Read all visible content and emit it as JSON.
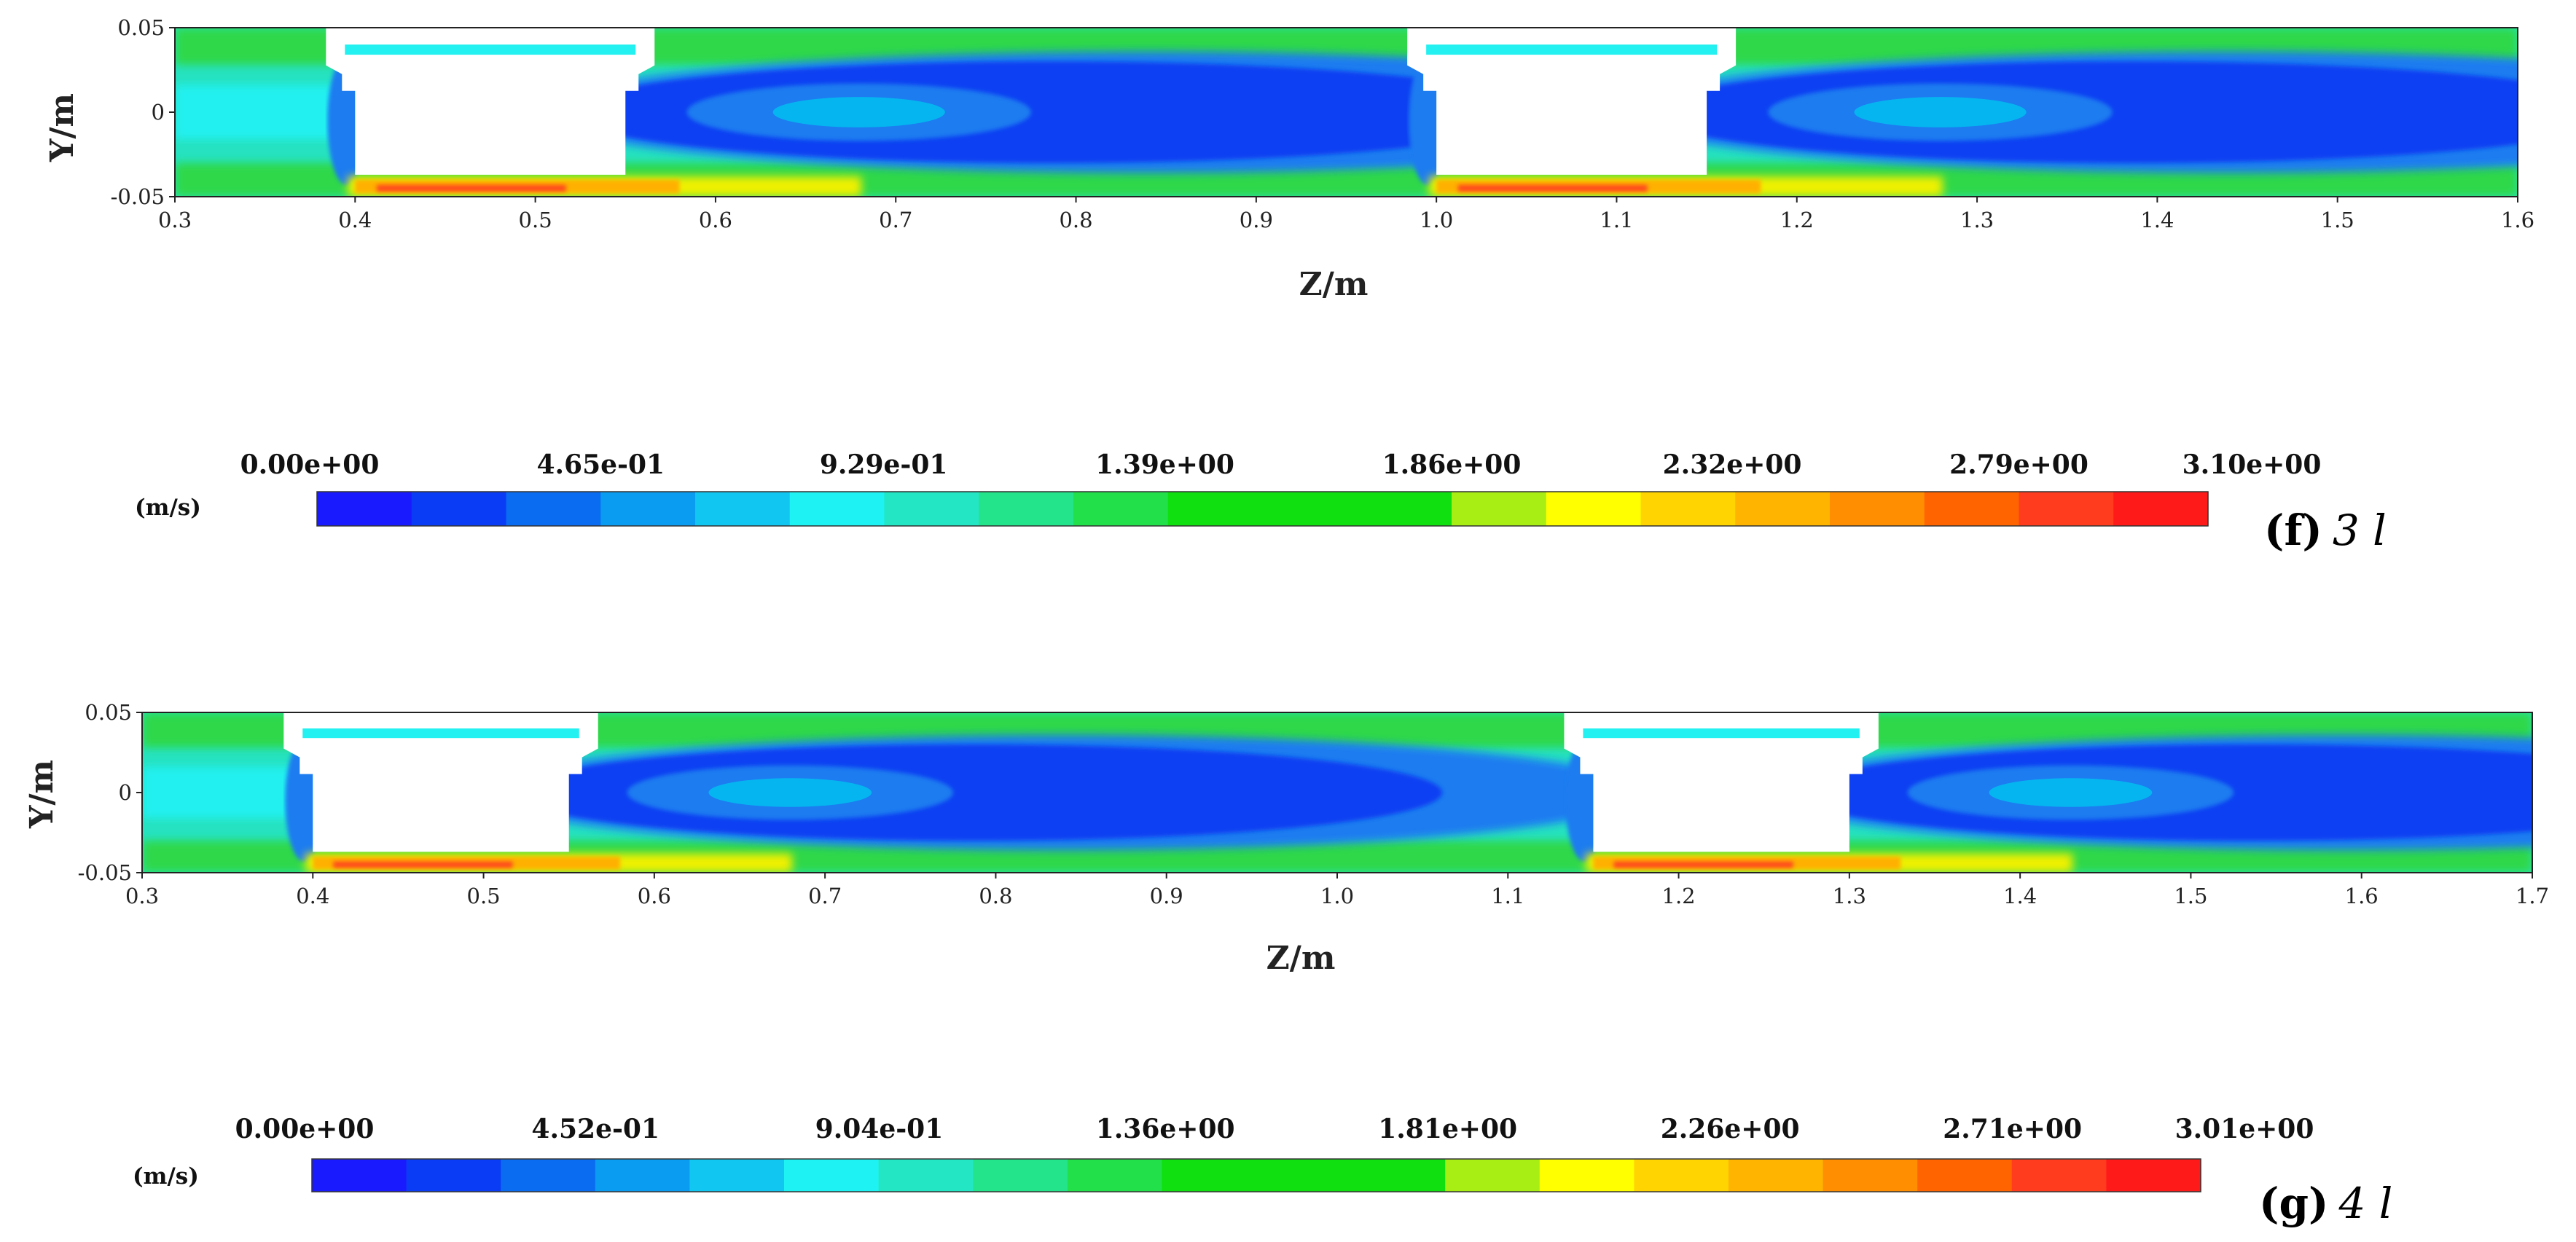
{
  "chart_data": [
    {
      "type": "heatmap",
      "panel_label": "3 l",
      "panel_letter": "(f)",
      "xlabel": "Z/m",
      "ylabel": "Y/m",
      "xlim": [
        0.3,
        1.6
      ],
      "ylim": [
        -0.05,
        0.05
      ],
      "x_ticks": [
        0.3,
        0.4,
        0.5,
        0.6,
        0.7,
        0.8,
        0.9,
        1.0,
        1.1,
        1.2,
        1.3,
        1.4,
        1.5,
        1.6
      ],
      "x_tick_labels": [
        "0.3",
        "0.4",
        "0.5",
        "0.6",
        "0.7",
        "0.8",
        "0.9",
        "1.0",
        "1.1",
        "1.2",
        "1.3",
        "1.4",
        "1.5",
        "1.6"
      ],
      "y_ticks": [
        0.05,
        0,
        -0.05
      ],
      "y_tick_labels": [
        "0.05",
        "0",
        "-0.05"
      ],
      "obstacles": [
        [
          0.4,
          0.55
        ],
        [
          1.0,
          1.15
        ]
      ],
      "colorbar": {
        "unit": "(m/s)",
        "min": 0,
        "max": 3.1,
        "tick_labels": [
          "0.00e+00",
          "4.65e-01",
          "9.29e-01",
          "1.39e+00",
          "1.86e+00",
          "2.32e+00",
          "2.79e+00",
          "3.10e+00"
        ]
      }
    },
    {
      "type": "heatmap",
      "panel_label": "4 l",
      "panel_letter": "(g)",
      "xlabel": "Z/m",
      "ylabel": "Y/m",
      "xlim": [
        0.3,
        1.7
      ],
      "ylim": [
        -0.05,
        0.05
      ],
      "x_ticks": [
        0.3,
        0.4,
        0.5,
        0.6,
        0.7,
        0.8,
        0.9,
        1.0,
        1.1,
        1.2,
        1.3,
        1.4,
        1.5,
        1.6,
        1.7
      ],
      "x_tick_labels": [
        "0.3",
        "0.4",
        "0.5",
        "0.6",
        "0.7",
        "0.8",
        "0.9",
        "1.0",
        "1.1",
        "1.2",
        "1.3",
        "1.4",
        "1.5",
        "1.6",
        "1.7"
      ],
      "y_ticks": [
        0.05,
        0,
        -0.05
      ],
      "y_tick_labels": [
        "0.05",
        "0",
        "-0.05"
      ],
      "obstacles": [
        [
          0.4,
          0.55
        ],
        [
          1.15,
          1.3
        ]
      ],
      "colorbar": {
        "unit": "(m/s)",
        "min": 0,
        "max": 3.01,
        "tick_labels": [
          "0.00e+00",
          "4.52e-01",
          "9.04e-01",
          "1.36e+00",
          "1.81e+00",
          "2.26e+00",
          "2.71e+00",
          "3.01e+00"
        ]
      }
    }
  ],
  "colormap": [
    "#1a1aff",
    "#0a3cf5",
    "#0a6cf0",
    "#0a9cf0",
    "#12c6f2",
    "#1ef2f2",
    "#23e6c4",
    "#23e48a",
    "#21e04a",
    "#10e010",
    "#10e010",
    "#10e010",
    "#a8ee14",
    "#ffff00",
    "#ffd400",
    "#ffb400",
    "#ff8e00",
    "#ff6400",
    "#ff3c1e",
    "#ff1a1a"
  ],
  "field_colors": {
    "background": "#26e2c0",
    "green": "#2ed84a",
    "cyan": "#23f0f0",
    "blue_outer": "#1a7cf0",
    "blue_mid": "#0a3ff2",
    "blue_core": "#05b5f0",
    "orange": "#ffb000",
    "red": "#ff4a1a",
    "yellow": "#f0f000"
  }
}
